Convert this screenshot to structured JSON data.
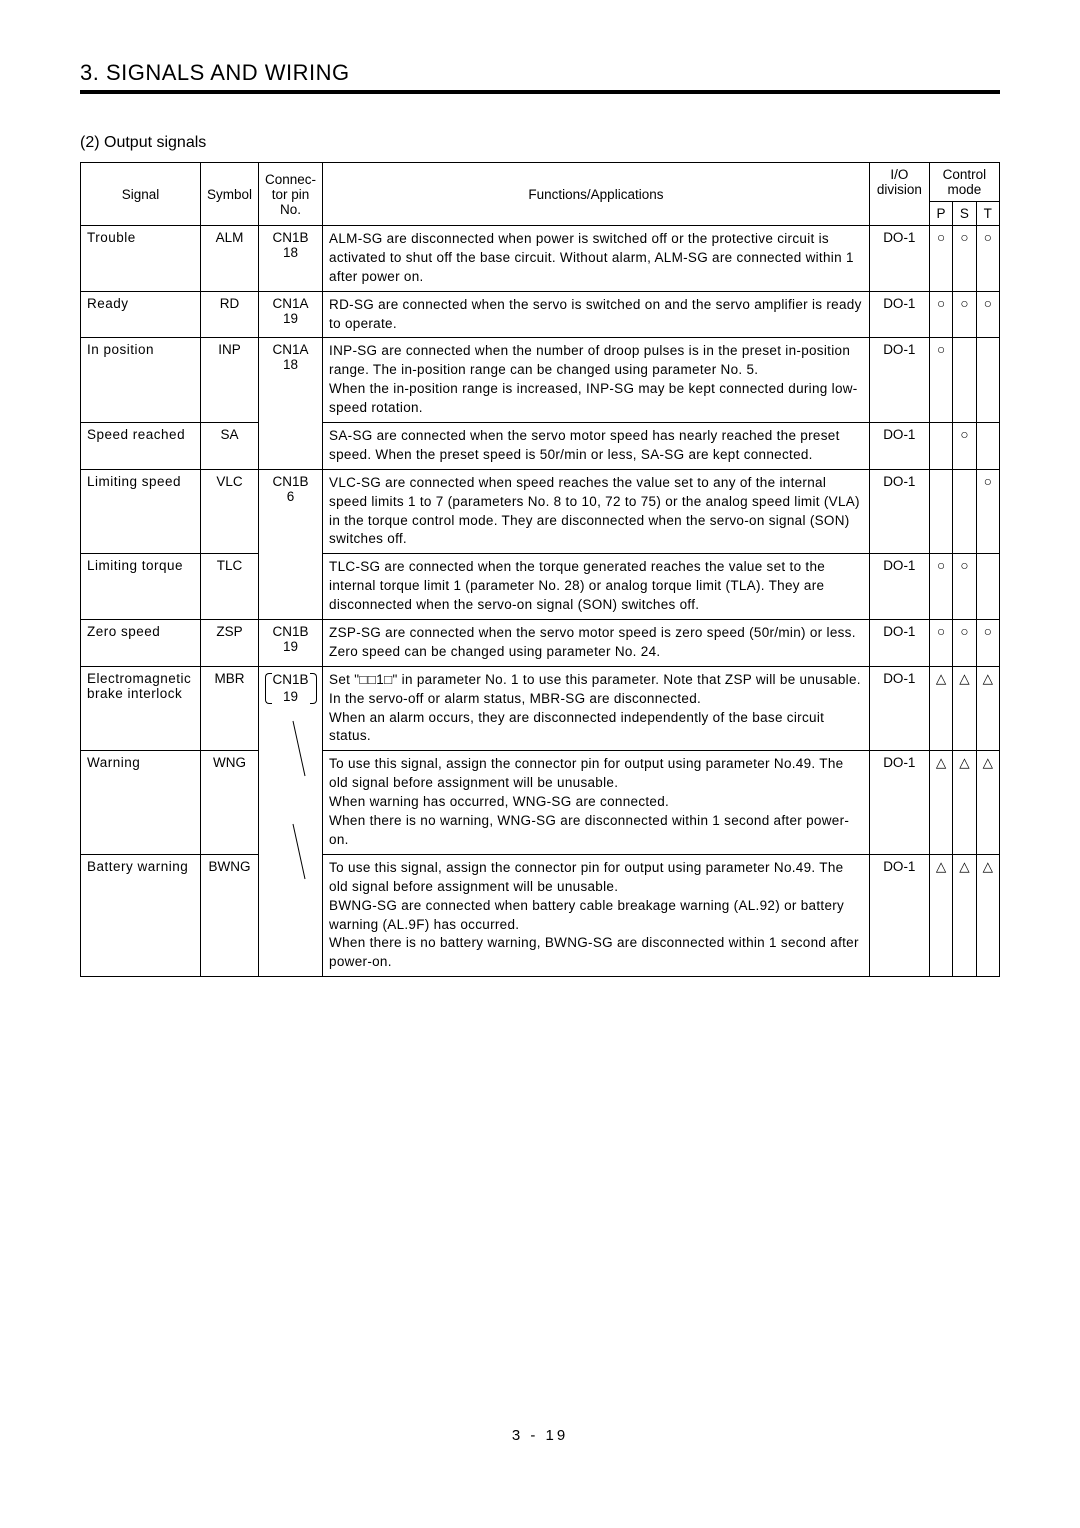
{
  "chapter": "3. SIGNALS AND WIRING",
  "section": "(2) Output signals",
  "table": {
    "headers": {
      "signal": "Signal",
      "symbol": "Symbol",
      "pin": "Connec-\ntor pin\nNo.",
      "func": "Functions/Applications",
      "io": "I/O\ndivision",
      "ctrlmode": "Control\nmode",
      "P": "P",
      "S": "S",
      "T": "T"
    },
    "rows": [
      {
        "signal": "Trouble",
        "symbol": "ALM",
        "pin": "CN1B\n18",
        "func": "ALM-SG are disconnected when power is switched off or the protective circuit is activated to shut off the base circuit. Without alarm, ALM-SG are connected within 1 after power on.",
        "io": "DO-1",
        "P": "○",
        "S": "○",
        "T": "○",
        "pinBottom": true
      },
      {
        "signal": "Ready",
        "symbol": "RD",
        "pin": "CN1A\n19",
        "func": "RD-SG are connected when the servo is switched on and the servo amplifier is ready to operate.",
        "io": "DO-1",
        "P": "○",
        "S": "○",
        "T": "○",
        "pinBottom": true
      },
      {
        "signal": "In position",
        "symbol": "INP",
        "pin": "CN1A\n18",
        "func": "INP-SG are connected when the number of droop pulses is in the preset in-position range. The in-position range can be changed using parameter No. 5.\nWhen the in-position range is increased, INP-SG may be kept connected during low-speed rotation.",
        "io": "DO-1",
        "P": "○",
        "S": "",
        "T": "",
        "pinShared": "top"
      },
      {
        "signal": "Speed reached",
        "symbol": "SA",
        "pin": "",
        "func": "SA-SG are connected when the servo motor speed has nearly reached the preset speed. When the preset speed is 50r/min or less, SA-SG are kept connected.",
        "io": "DO-1",
        "P": "",
        "S": "○",
        "T": "",
        "pinShared": "bottom"
      },
      {
        "signal": "Limiting speed",
        "symbol": "VLC",
        "pin": "CN1B\n6",
        "func": "VLC-SG are connected when speed reaches the value set to any of the internal speed limits 1 to 7 (parameters No. 8 to 10, 72 to 75) or the analog speed limit (VLA) in the torque control mode. They are disconnected when the servo-on signal (SON) switches off.",
        "io": "DO-1",
        "P": "",
        "S": "",
        "T": "○",
        "pinShared": "top"
      },
      {
        "signal": "Limiting torque",
        "symbol": "TLC",
        "pin": "",
        "func": "TLC-SG are connected when the torque generated reaches the value set to the internal torque limit 1 (parameter No. 28) or analog torque limit (TLA). They are disconnected when the servo-on signal (SON) switches off.",
        "io": "DO-1",
        "P": "○",
        "S": "○",
        "T": "",
        "pinShared": "bottom"
      },
      {
        "signal": "Zero speed",
        "symbol": "ZSP",
        "pin": "CN1B\n19",
        "func": "ZSP-SG are connected when the servo motor speed is zero speed (50r/min) or less. Zero speed can be changed using parameter No. 24.",
        "io": "DO-1",
        "P": "○",
        "S": "○",
        "T": "○",
        "pinBottom": true
      },
      {
        "signal": "Electromagnetic brake interlock",
        "symbol": "MBR",
        "pin": "CN1B\n19",
        "pinBracketed": true,
        "func": "Set \"□□1□\" in parameter No. 1 to use this parameter. Note that ZSP will be unusable.\nIn the servo-off or alarm status, MBR-SG are disconnected.\nWhen an alarm occurs, they are disconnected independently of the base circuit status.",
        "io": "DO-1",
        "P": "△",
        "S": "△",
        "T": "△",
        "arrowSource": true
      },
      {
        "signal": "Warning",
        "symbol": "WNG",
        "pin": "",
        "pinArrow": true,
        "func": "To use this signal, assign the connector pin for output using parameter No.49. The old signal before assignment will be unusable.\nWhen warning has occurred, WNG-SG are connected.\nWhen there is no warning, WNG-SG are disconnected within 1 second after power-on.",
        "io": "DO-1",
        "P": "△",
        "S": "△",
        "T": "△"
      },
      {
        "signal": "Battery warning",
        "symbol": "BWNG",
        "pin": "",
        "pinArrow": true,
        "func": "To use this signal, assign the connector pin for output using parameter No.49. The old signal before assignment will be unusable.\nBWNG-SG are connected when battery cable breakage warning (AL.92) or battery warning (AL.9F) has occurred.\nWhen there is no battery warning, BWNG-SG are disconnected within 1 second after power-on.",
        "io": "DO-1",
        "P": "△",
        "S": "△",
        "T": "△"
      }
    ]
  },
  "pageNumber": "3 -  19"
}
